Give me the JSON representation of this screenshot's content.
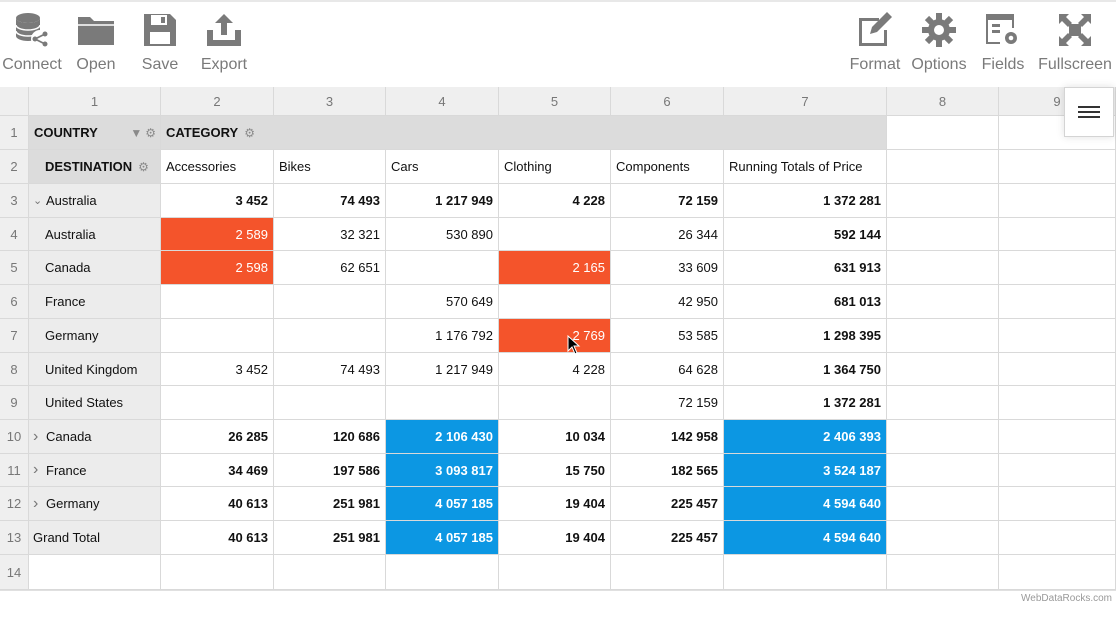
{
  "toolbar": {
    "connect": "Connect",
    "open": "Open",
    "save": "Save",
    "export": "Export",
    "format": "Format",
    "options": "Options",
    "fields": "Fields",
    "fullscreen": "Fullscreen"
  },
  "columns": [
    "1",
    "2",
    "3",
    "4",
    "5",
    "6",
    "7",
    "8",
    "9"
  ],
  "rows": [
    "1",
    "2",
    "3",
    "4",
    "5",
    "6",
    "7",
    "8",
    "9",
    "10",
    "11",
    "12",
    "13",
    "14"
  ],
  "headers": {
    "country": "COUNTRY",
    "category": "CATEGORY",
    "destination": "DESTINATION"
  },
  "categories": [
    "Accessories",
    "Bikes",
    "Cars",
    "Clothing",
    "Components",
    "Running Totals of Price"
  ],
  "data_rows": [
    {
      "label": "Australia",
      "expander": "open",
      "indent": false,
      "bold": true,
      "values": [
        "3 452",
        "74 493",
        "1 217 949",
        "4 228",
        "72 159",
        "1 372 281"
      ]
    },
    {
      "label": "Australia",
      "expander": "",
      "indent": true,
      "bold": false,
      "values": [
        "2 589",
        "32 321",
        "530 890",
        "",
        "26 344",
        "592 144"
      ]
    },
    {
      "label": "Canada",
      "expander": "",
      "indent": true,
      "bold": false,
      "values": [
        "2 598",
        "62 651",
        "",
        "2 165",
        "33 609",
        "631 913"
      ]
    },
    {
      "label": "France",
      "expander": "",
      "indent": true,
      "bold": false,
      "values": [
        "",
        "",
        "570 649",
        "",
        "42 950",
        "681 013"
      ]
    },
    {
      "label": "Germany",
      "expander": "",
      "indent": true,
      "bold": false,
      "values": [
        "",
        "",
        "1 176 792",
        "2 769",
        "53 585",
        "1 298 395"
      ]
    },
    {
      "label": "United Kingdom",
      "expander": "",
      "indent": true,
      "bold": false,
      "values": [
        "3 452",
        "74 493",
        "1 217 949",
        "4 228",
        "64 628",
        "1 364 750"
      ]
    },
    {
      "label": "United States",
      "expander": "",
      "indent": true,
      "bold": false,
      "values": [
        "",
        "",
        "",
        "",
        "72 159",
        "1 372 281"
      ]
    },
    {
      "label": "Canada",
      "expander": "closed",
      "indent": false,
      "bold": true,
      "values": [
        "26 285",
        "120 686",
        "2 106 430",
        "10 034",
        "142 958",
        "2 406 393"
      ]
    },
    {
      "label": "France",
      "expander": "closed",
      "indent": false,
      "bold": true,
      "values": [
        "34 469",
        "197 586",
        "3 093 817",
        "15 750",
        "182 565",
        "3 524 187"
      ]
    },
    {
      "label": "Germany",
      "expander": "closed",
      "indent": false,
      "bold": true,
      "values": [
        "40 613",
        "251 981",
        "4 057 185",
        "19 404",
        "225 457",
        "4 594 640"
      ]
    },
    {
      "label": "Grand Total",
      "expander": "",
      "indent": false,
      "bold": true,
      "values": [
        "40 613",
        "251 981",
        "4 057 185",
        "19 404",
        "225 457",
        "4 594 640"
      ]
    }
  ],
  "highlights": {
    "orange": [
      [
        1,
        0
      ],
      [
        2,
        0
      ],
      [
        2,
        3
      ],
      [
        4,
        3
      ]
    ],
    "blue": [
      [
        7,
        2
      ],
      [
        8,
        2
      ],
      [
        9,
        2
      ],
      [
        10,
        2
      ],
      [
        7,
        5
      ],
      [
        8,
        5
      ],
      [
        9,
        5
      ],
      [
        10,
        5
      ]
    ]
  },
  "colors": {
    "orange": "#f4542b",
    "blue": "#0c97e3",
    "header_gray": "#dcdcdc",
    "toolbar_icon": "#7a7a7a"
  },
  "credit": "WebDataRocks.com"
}
